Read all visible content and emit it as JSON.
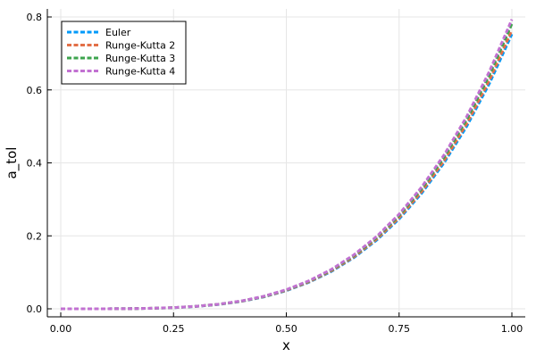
{
  "chart_data": {
    "type": "line",
    "title": "",
    "xlabel": "x",
    "ylabel": "a_tol",
    "xlim": [
      0,
      1
    ],
    "ylim": [
      0,
      0.8
    ],
    "xticks": [
      0,
      0.25,
      0.5,
      0.75,
      1
    ],
    "xtick_labels": [
      "0.00",
      "0.25",
      "0.50",
      "0.75",
      "1.00"
    ],
    "yticks": [
      0,
      0.2,
      0.4,
      0.6,
      0.8
    ],
    "ytick_labels": [
      "0.0",
      "0.2",
      "0.4",
      "0.6",
      "0.8"
    ],
    "grid": true,
    "legend_position": "top-left",
    "x": [
      0,
      0.05,
      0.1,
      0.15,
      0.2,
      0.25,
      0.3,
      0.35,
      0.4,
      0.45,
      0.5,
      0.55,
      0.6,
      0.65,
      0.7,
      0.75,
      0.8,
      0.85,
      0.9,
      0.95,
      1.0
    ],
    "series": [
      {
        "name": "Euler",
        "color": "#009AFA",
        "values": [
          0,
          4e-06,
          8e-05,
          0.0004,
          0.0013,
          0.003,
          0.0065,
          0.0118,
          0.0203,
          0.0325,
          0.0497,
          0.0726,
          0.1025,
          0.1405,
          0.188,
          0.2462,
          0.3167,
          0.4009,
          0.5005,
          0.6172,
          0.753
        ]
      },
      {
        "name": "Runge-Kutta 2",
        "color": "#E36F47",
        "values": [
          0,
          4e-06,
          9e-05,
          0.0004,
          0.0014,
          0.0031,
          0.0067,
          0.0121,
          0.0207,
          0.0331,
          0.0505,
          0.0738,
          0.1041,
          0.1426,
          0.1907,
          0.2497,
          0.3212,
          0.4066,
          0.5076,
          0.6259,
          0.7636
        ]
      },
      {
        "name": "Runge-Kutta 3",
        "color": "#3EA44E",
        "values": [
          0,
          4e-06,
          9e-05,
          0.0004,
          0.0014,
          0.0032,
          0.0069,
          0.0124,
          0.0212,
          0.0339,
          0.0517,
          0.0755,
          0.1065,
          0.1459,
          0.1951,
          0.2555,
          0.3287,
          0.416,
          0.5193,
          0.6404,
          0.7812
        ]
      },
      {
        "name": "Runge-Kutta 4",
        "color": "#C271D2",
        "values": [
          0,
          5e-06,
          9e-05,
          0.0004,
          0.0015,
          0.0033,
          0.007,
          0.0126,
          0.0215,
          0.0344,
          0.0525,
          0.0767,
          0.1081,
          0.1481,
          0.1981,
          0.2594,
          0.3337,
          0.4224,
          0.5273,
          0.6502,
          0.7932
        ]
      }
    ]
  }
}
